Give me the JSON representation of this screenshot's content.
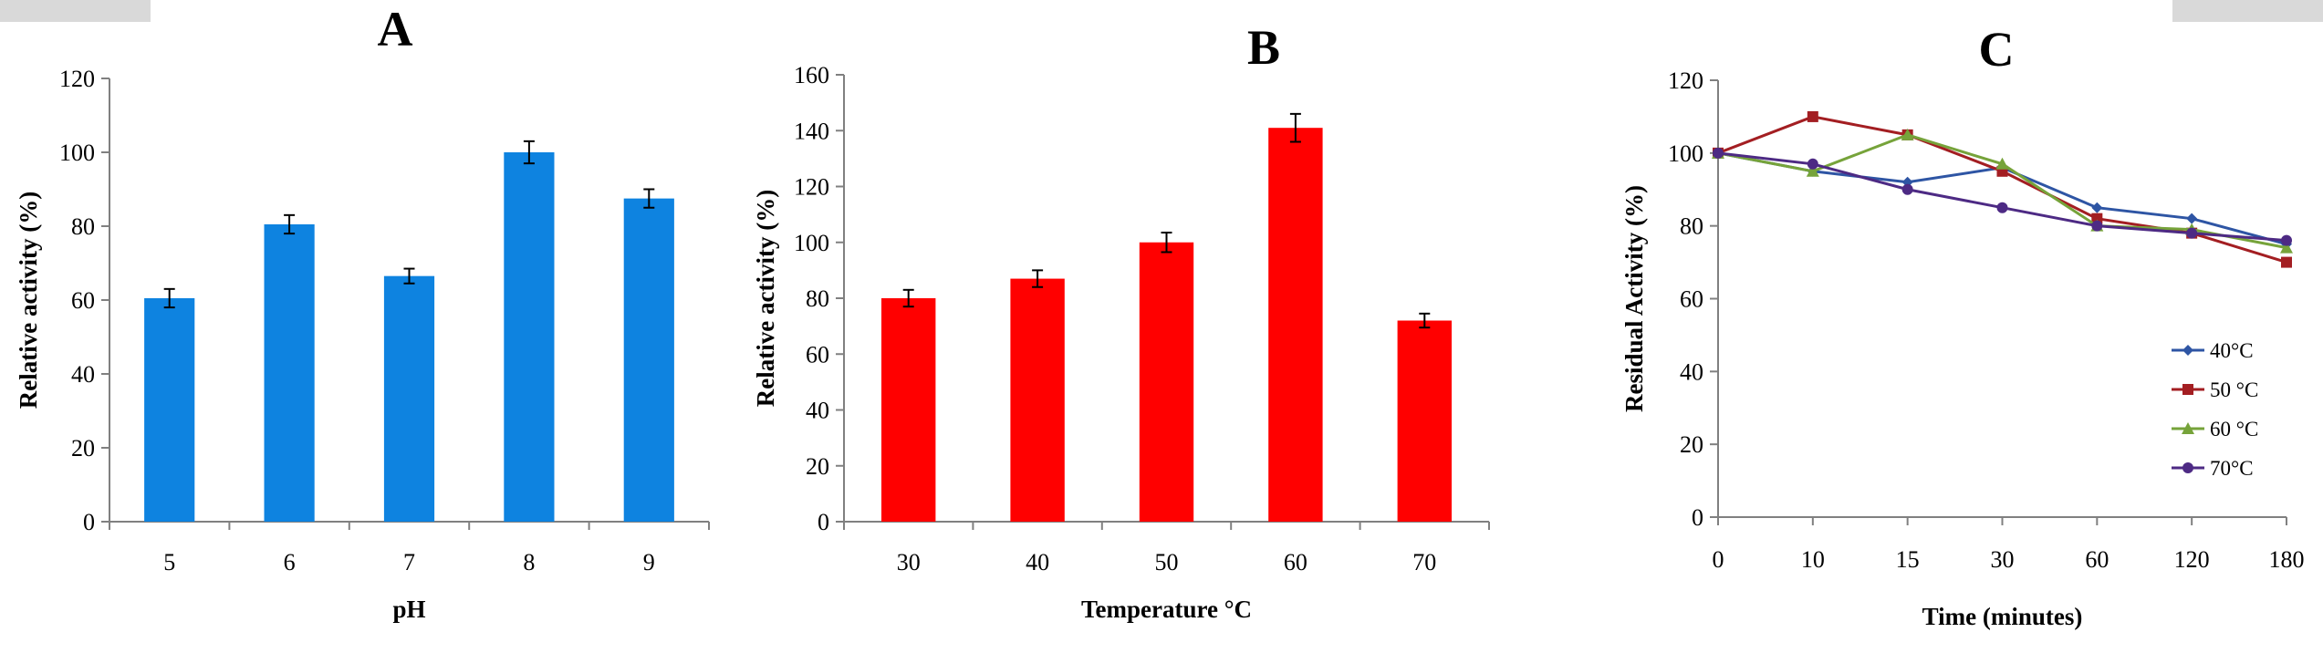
{
  "chart_data": [
    {
      "id": "A",
      "panel_label": "A",
      "type": "bar",
      "categories": [
        "5",
        "6",
        "7",
        "8",
        "9"
      ],
      "values": [
        60.5,
        80.5,
        66.5,
        100,
        87.5
      ],
      "errors": [
        2.5,
        2.5,
        2,
        3,
        2.5
      ],
      "bar_color": "#0e83e0",
      "xlabel": "pH",
      "ylabel": "Relative activity (%)",
      "ylim": [
        0,
        120
      ],
      "yticks": [
        0,
        20,
        40,
        60,
        80,
        100,
        120
      ],
      "grid": false,
      "legend": "none"
    },
    {
      "id": "B",
      "panel_label": "B",
      "type": "bar",
      "categories": [
        "30",
        "40",
        "50",
        "60",
        "70"
      ],
      "values": [
        80,
        87,
        100,
        141,
        72
      ],
      "errors": [
        3,
        3,
        3.5,
        5,
        2.5
      ],
      "bar_color": "#ff0000",
      "xlabel": "Temperature °C",
      "ylabel": "Relative activity (%)",
      "ylim": [
        0,
        160
      ],
      "yticks": [
        0,
        20,
        40,
        60,
        80,
        100,
        120,
        140,
        160
      ],
      "grid": false,
      "legend": "none"
    },
    {
      "id": "C",
      "panel_label": "C",
      "type": "line",
      "categories": [
        "0",
        "10",
        "15",
        "30",
        "60",
        "120",
        "180"
      ],
      "series": [
        {
          "name": "40°C",
          "values": [
            100,
            95,
            92,
            96,
            85,
            82,
            75
          ],
          "color": "#2e55a4",
          "marker": "diamond"
        },
        {
          "name": "50 °C",
          "values": [
            100,
            110,
            105,
            95,
            82,
            78,
            70
          ],
          "color": "#a31e22",
          "marker": "square"
        },
        {
          "name": "60 °C",
          "values": [
            100,
            95,
            105,
            97,
            80,
            79,
            74
          ],
          "color": "#76a33a",
          "marker": "triangle"
        },
        {
          "name": "70°C",
          "values": [
            100,
            97,
            90,
            85,
            80,
            78,
            76
          ],
          "color": "#4d2a84",
          "marker": "circle"
        }
      ],
      "xlabel": "Time (minutes)",
      "ylabel": "Residual Activity (%)",
      "ylim": [
        0,
        120
      ],
      "yticks": [
        0,
        20,
        40,
        60,
        80,
        100,
        120
      ],
      "grid": false,
      "legend": "right"
    }
  ]
}
